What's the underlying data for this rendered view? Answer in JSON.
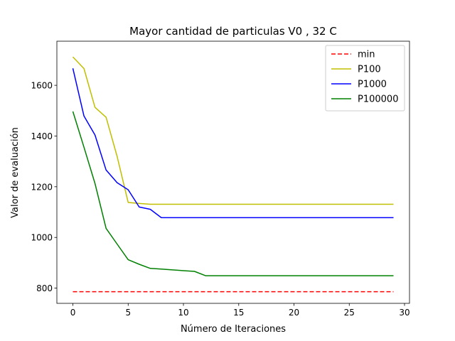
{
  "chart_data": {
    "type": "line",
    "title": "Mayor cantidad de particulas V0 , 32 C",
    "xlabel": "Número de Iteraciones",
    "ylabel": "Valor de evaluación",
    "xlim": [
      -1.45,
      30.45
    ],
    "ylim": [
      740,
      1774
    ],
    "x_ticks": [
      0,
      5,
      10,
      15,
      20,
      25,
      30
    ],
    "y_ticks": [
      800,
      1000,
      1200,
      1400,
      1600
    ],
    "grid": false,
    "legend_position": "top-right",
    "series": [
      {
        "name": "min",
        "color": "#ff0000",
        "dashed": true,
        "x": [
          0,
          29
        ],
        "y": [
          786,
          786
        ]
      },
      {
        "name": "P100",
        "color": "#bfbf00",
        "dashed": false,
        "x": [
          0,
          1,
          2,
          3,
          4,
          5,
          6,
          7,
          8,
          9,
          10,
          11,
          12,
          13,
          14,
          15,
          16,
          17,
          18,
          19,
          20,
          21,
          22,
          23,
          24,
          25,
          26,
          27,
          28,
          29
        ],
        "y": [
          1712,
          1666,
          1513,
          1474,
          1320,
          1138,
          1134,
          1131,
          1131,
          1131,
          1131,
          1131,
          1131,
          1131,
          1131,
          1131,
          1131,
          1131,
          1131,
          1131,
          1131,
          1131,
          1131,
          1131,
          1131,
          1131,
          1131,
          1131,
          1131,
          1131
        ]
      },
      {
        "name": "P1000",
        "color": "#0000ff",
        "dashed": false,
        "x": [
          0,
          1,
          2,
          3,
          4,
          5,
          6,
          7,
          8,
          9,
          10,
          11,
          12,
          13,
          14,
          15,
          16,
          17,
          18,
          19,
          20,
          21,
          22,
          23,
          24,
          25,
          26,
          27,
          28,
          29
        ],
        "y": [
          1667,
          1479,
          1404,
          1266,
          1216,
          1188,
          1120,
          1111,
          1078,
          1078,
          1078,
          1078,
          1078,
          1078,
          1078,
          1078,
          1078,
          1078,
          1078,
          1078,
          1078,
          1078,
          1078,
          1078,
          1078,
          1078,
          1078,
          1078,
          1078,
          1078
        ]
      },
      {
        "name": "P100000",
        "color": "#008000",
        "dashed": false,
        "x": [
          0,
          1,
          2,
          3,
          4,
          5,
          6,
          7,
          8,
          9,
          10,
          11,
          12,
          13,
          14,
          15,
          16,
          17,
          18,
          19,
          20,
          21,
          22,
          23,
          24,
          25,
          26,
          27,
          28,
          29
        ],
        "y": [
          1497,
          1356,
          1213,
          1036,
          974,
          912,
          894,
          878,
          875,
          872,
          869,
          866,
          849,
          849,
          849,
          849,
          849,
          849,
          849,
          849,
          849,
          849,
          849,
          849,
          849,
          849,
          849,
          849,
          849,
          849
        ]
      }
    ]
  }
}
